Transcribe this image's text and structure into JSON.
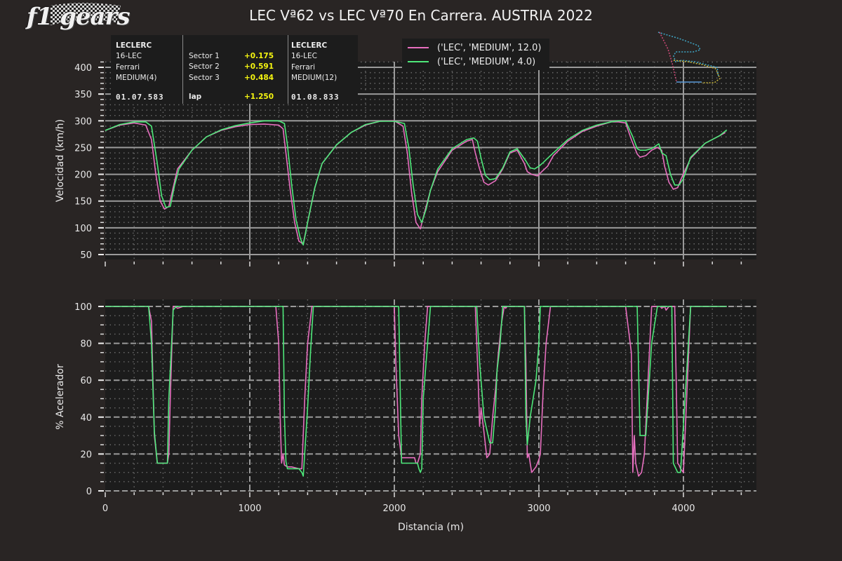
{
  "title": "LEC Vª62 vs LEC Vª70 En Carrera. AUSTRIA 2022",
  "logo": {
    "text": "f1 gears",
    "icon": "checkered-flag-icon"
  },
  "info_box": {
    "driver_a": {
      "name": "LECLERC",
      "code": "16-LEC",
      "team": "Ferrari",
      "tyre": "MEDIUM(4)",
      "lap_time": "01.07.583"
    },
    "sectors": [
      {
        "label": "Sector 1",
        "delta": "+0.175"
      },
      {
        "label": "Sector 2",
        "delta": "+0.591"
      },
      {
        "label": "Sector 3",
        "delta": "+0.484"
      }
    ],
    "lap": {
      "label": "lap",
      "delta": "+1.250"
    },
    "driver_b": {
      "name": "LECLERC",
      "code": "16-LEC",
      "team": "Ferrari",
      "tyre": "MEDIUM(12)",
      "lap_time": "01.08.833"
    }
  },
  "legend": [
    {
      "label": "('LEC', 'MEDIUM', 12.0)",
      "color": "#e76fbf"
    },
    {
      "label": "('LEC', 'MEDIUM', 4.0)",
      "color": "#4ee87a"
    }
  ],
  "colors": {
    "background": "#292524",
    "plot_bg": "#1c1c1c",
    "series_12": "#e76fbf",
    "series_4": "#4ee87a",
    "grid": "#9a9a9a"
  },
  "track_map": {
    "icon": "track-map-icon"
  },
  "chart_data": [
    {
      "type": "line",
      "title": "",
      "xlabel": "",
      "ylabel": "Velocidad (km/h)",
      "xlim": [
        0,
        4500
      ],
      "ylim": [
        40,
        410
      ],
      "yticks": [
        50,
        100,
        150,
        200,
        250,
        300,
        350,
        400
      ],
      "grid": true,
      "series": [
        {
          "name": "('LEC', 'MEDIUM', 12.0)",
          "color": "#e76fbf",
          "x": [
            0,
            100,
            200,
            280,
            320,
            350,
            380,
            410,
            440,
            470,
            500,
            600,
            700,
            800,
            900,
            1000,
            1100,
            1200,
            1230,
            1250,
            1280,
            1310,
            1340,
            1370,
            1400,
            1450,
            1500,
            1600,
            1700,
            1800,
            1900,
            2000,
            2060,
            2090,
            2120,
            2150,
            2180,
            2210,
            2250,
            2300,
            2400,
            2500,
            2540,
            2560,
            2590,
            2620,
            2650,
            2700,
            2750,
            2800,
            2850,
            2900,
            2920,
            2950,
            2990,
            3020,
            3060,
            3100,
            3200,
            3300,
            3400,
            3500,
            3550,
            3600,
            3640,
            3680,
            3700,
            3740,
            3780,
            3820,
            3850,
            3870,
            3900,
            3930,
            3960,
            3990,
            4050,
            4150,
            4250,
            4290
          ],
          "values": [
            282,
            292,
            296,
            292,
            265,
            200,
            150,
            135,
            140,
            175,
            210,
            245,
            270,
            282,
            289,
            293,
            294,
            292,
            285,
            240,
            170,
            110,
            75,
            70,
            110,
            175,
            220,
            255,
            278,
            292,
            299,
            300,
            290,
            240,
            165,
            110,
            98,
            130,
            170,
            205,
            245,
            262,
            265,
            240,
            210,
            185,
            180,
            188,
            210,
            240,
            245,
            220,
            205,
            200,
            197,
            205,
            215,
            235,
            262,
            280,
            290,
            298,
            298,
            296,
            265,
            238,
            232,
            235,
            245,
            250,
            245,
            215,
            185,
            172,
            175,
            195,
            230,
            258,
            272,
            278
          ]
        },
        {
          "name": "('LEC', 'MEDIUM', 4.0)",
          "color": "#4ee87a",
          "x": [
            0,
            100,
            200,
            280,
            320,
            360,
            390,
            420,
            450,
            480,
            510,
            600,
            700,
            800,
            900,
            1000,
            1100,
            1200,
            1240,
            1260,
            1290,
            1320,
            1350,
            1370,
            1400,
            1450,
            1500,
            1600,
            1700,
            1800,
            1900,
            2000,
            2070,
            2100,
            2130,
            2160,
            2190,
            2220,
            2250,
            2300,
            2400,
            2500,
            2550,
            2575,
            2600,
            2630,
            2660,
            2700,
            2750,
            2800,
            2850,
            2910,
            2940,
            2970,
            3000,
            3030,
            3060,
            3100,
            3200,
            3300,
            3400,
            3500,
            3550,
            3600,
            3650,
            3680,
            3700,
            3740,
            3780,
            3830,
            3850,
            3880,
            3910,
            3940,
            3970,
            4000,
            4050,
            4150,
            4250,
            4300
          ],
          "values": [
            282,
            293,
            298,
            298,
            290,
            220,
            160,
            138,
            140,
            180,
            210,
            245,
            270,
            283,
            291,
            296,
            300,
            300,
            295,
            255,
            180,
            115,
            80,
            68,
            110,
            175,
            220,
            255,
            278,
            293,
            299,
            299,
            295,
            250,
            180,
            125,
            110,
            135,
            170,
            210,
            248,
            265,
            268,
            262,
            230,
            198,
            190,
            192,
            212,
            242,
            248,
            225,
            212,
            210,
            215,
            222,
            230,
            240,
            265,
            282,
            292,
            298,
            300,
            300,
            270,
            248,
            245,
            245,
            248,
            257,
            240,
            235,
            200,
            180,
            180,
            192,
            232,
            258,
            272,
            283
          ]
        }
      ]
    },
    {
      "type": "line",
      "title": "",
      "xlabel": "Distancia (m)",
      "ylabel": "% Acelerador",
      "xlim": [
        0,
        4500
      ],
      "ylim": [
        -1,
        104
      ],
      "xticks": [
        0,
        1000,
        2000,
        3000,
        4000
      ],
      "yticks": [
        0,
        20,
        40,
        60,
        80,
        100
      ],
      "grid": true,
      "series": [
        {
          "name": "('LEC', 'MEDIUM', 12.0)",
          "color": "#e76fbf",
          "x": [
            0,
            300,
            320,
            340,
            360,
            400,
            430,
            440,
            450,
            470,
            480,
            500,
            540,
            1180,
            1200,
            1210,
            1220,
            1230,
            1240,
            1260,
            1290,
            1340,
            1350,
            1360,
            1380,
            1400,
            1430,
            1440,
            1460,
            1470,
            2000,
            2010,
            2030,
            2050,
            2140,
            2150,
            2160,
            2180,
            2190,
            2210,
            2230,
            2560,
            2580,
            2590,
            2600,
            2620,
            2640,
            2660,
            2680,
            2700,
            2720,
            2740,
            2760,
            2770,
            2780,
            2900,
            2910,
            2920,
            2930,
            2950,
            2980,
            3000,
            3010,
            3030,
            3050,
            3080,
            3100,
            3600,
            3640,
            3650,
            3660,
            3670,
            3690,
            3710,
            3730,
            3780,
            3800,
            3820,
            3840,
            3850,
            3870,
            3880,
            3900,
            3940,
            3950,
            3960,
            3970,
            3980,
            4000,
            4050,
            4300
          ],
          "values": [
            100,
            100,
            92,
            30,
            15,
            15,
            15,
            20,
            50,
            100,
            100,
            99,
            100,
            100,
            80,
            40,
            15,
            20,
            14,
            13,
            13,
            12,
            12,
            12,
            50,
            80,
            100,
            100,
            100,
            100,
            100,
            70,
            30,
            18,
            18,
            15,
            15,
            20,
            50,
            80,
            100,
            100,
            60,
            35,
            45,
            32,
            18,
            20,
            40,
            55,
            75,
            90,
            100,
            99,
            100,
            100,
            70,
            18,
            20,
            10,
            13,
            17,
            20,
            55,
            80,
            100,
            100,
            100,
            75,
            10,
            30,
            15,
            8,
            10,
            20,
            100,
            100,
            100,
            100,
            99,
            100,
            98,
            100,
            100,
            60,
            15,
            14,
            12,
            10,
            100,
            100
          ]
        },
        {
          "name": "('LEC', 'MEDIUM', 4.0)",
          "color": "#4ee87a",
          "x": [
            0,
            300,
            320,
            340,
            360,
            380,
            430,
            440,
            460,
            470,
            490,
            1200,
            1230,
            1240,
            1250,
            1260,
            1280,
            1340,
            1360,
            1370,
            1400,
            1420,
            1440,
            1460,
            2000,
            2030,
            2050,
            2160,
            2170,
            2180,
            2190,
            2200,
            2230,
            2250,
            2560,
            2570,
            2590,
            2620,
            2660,
            2680,
            2700,
            2710,
            2730,
            2750,
            2760,
            2800,
            2840,
            2880,
            2900,
            2910,
            2920,
            2940,
            2960,
            2980,
            3000,
            3010,
            3020,
            3040,
            3060,
            3080,
            3100,
            3600,
            3680,
            3700,
            3740,
            3780,
            3820,
            3830,
            3850,
            3880,
            3900,
            3920,
            3930,
            3960,
            3980,
            4050,
            4300
          ],
          "values": [
            100,
            100,
            80,
            32,
            15,
            15,
            15,
            50,
            82,
            98,
            100,
            100,
            100,
            40,
            16,
            12,
            12,
            12,
            10,
            8,
            45,
            75,
            100,
            100,
            100,
            100,
            15,
            15,
            12,
            10,
            12,
            50,
            80,
            100,
            100,
            100,
            70,
            40,
            26,
            26,
            45,
            65,
            78,
            100,
            100,
            100,
            100,
            100,
            100,
            40,
            25,
            40,
            50,
            60,
            80,
            100,
            100,
            100,
            100,
            100,
            100,
            100,
            100,
            30,
            30,
            80,
            100,
            100,
            100,
            100,
            100,
            100,
            15,
            10,
            10,
            100,
            100
          ]
        }
      ]
    }
  ]
}
